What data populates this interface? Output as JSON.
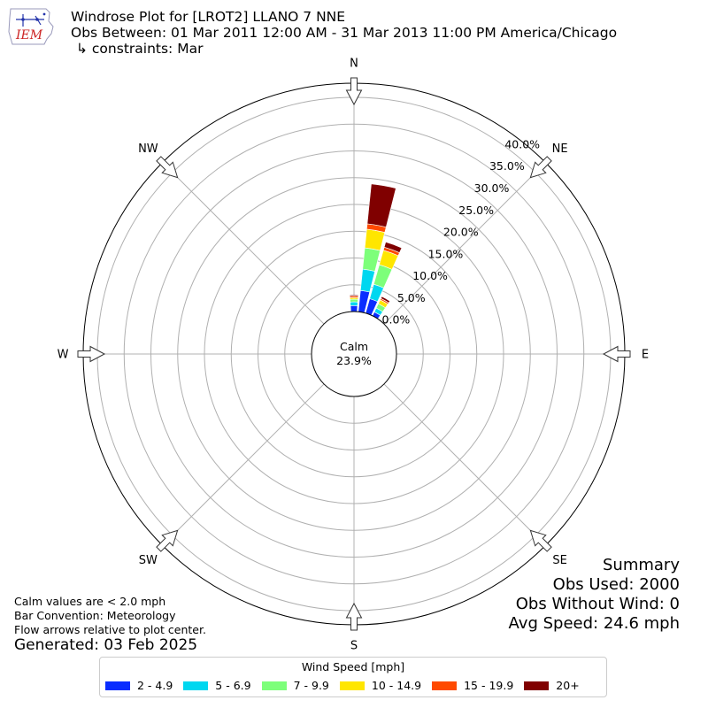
{
  "header": {
    "logo_text": "IEM",
    "title": "Windrose Plot for [LROT2] LLANO 7 NNE",
    "subtitle": "Obs Between: 01 Mar 2011 12:00 AM - 31 Mar 2013 11:00 PM America/Chicago",
    "constraints": "↳ constraints: Mar"
  },
  "notes": {
    "calm_note": "Calm values are < 2.0 mph",
    "bar_convention": "Bar Convention: Meteorology",
    "flow_arrows": "Flow arrows relative to plot center.",
    "generated": "Generated: 03 Feb 2025"
  },
  "summary": {
    "title": "Summary",
    "obs_used": "Obs Used: 2000",
    "obs_without_wind": "Obs Without Wind: 0",
    "avg_speed": "Avg Speed: 24.6 mph"
  },
  "legend": {
    "title": "Wind Speed [mph]",
    "items": [
      {
        "label": "2 - 4.9",
        "color": "#0a2dff"
      },
      {
        "label": "5 - 6.9",
        "color": "#00d7f0"
      },
      {
        "label": "7 - 9.9",
        "color": "#7dff7a"
      },
      {
        "label": "10 - 14.9",
        "color": "#ffe600"
      },
      {
        "label": "15 - 19.9",
        "color": "#ff4a00"
      },
      {
        "label": "20+",
        "color": "#800000"
      }
    ]
  },
  "chart_data": {
    "type": "windrose",
    "calm_label": "Calm",
    "calm_percent": "23.9%",
    "radial_ticks": [
      "0.0%",
      "5.0%",
      "10.0%",
      "15.0%",
      "20.0%",
      "25.0%",
      "30.0%",
      "35.0%",
      "40.0%"
    ],
    "radial_max": 40,
    "directions": [
      "N",
      "NE",
      "E",
      "SE",
      "S",
      "SW",
      "W",
      "NW"
    ],
    "series_names": [
      "2 - 4.9",
      "5 - 6.9",
      "7 - 9.9",
      "10 - 14.9",
      "15 - 19.9",
      "20+"
    ],
    "bars": [
      {
        "direction": 0,
        "values": [
          1.1,
          0.7,
          0.5,
          0.3,
          0.3,
          0.2
        ]
      },
      {
        "direction": 10,
        "values": [
          4.0,
          4.0,
          4.0,
          3.5,
          1.0,
          7.5
        ]
      },
      {
        "direction": 20,
        "values": [
          2.8,
          2.8,
          3.8,
          2.8,
          0.6,
          1.0
        ]
      },
      {
        "direction": 30,
        "values": [
          0.8,
          0.8,
          0.9,
          0.8,
          0.3,
          0.4
        ]
      }
    ],
    "grid": true
  }
}
